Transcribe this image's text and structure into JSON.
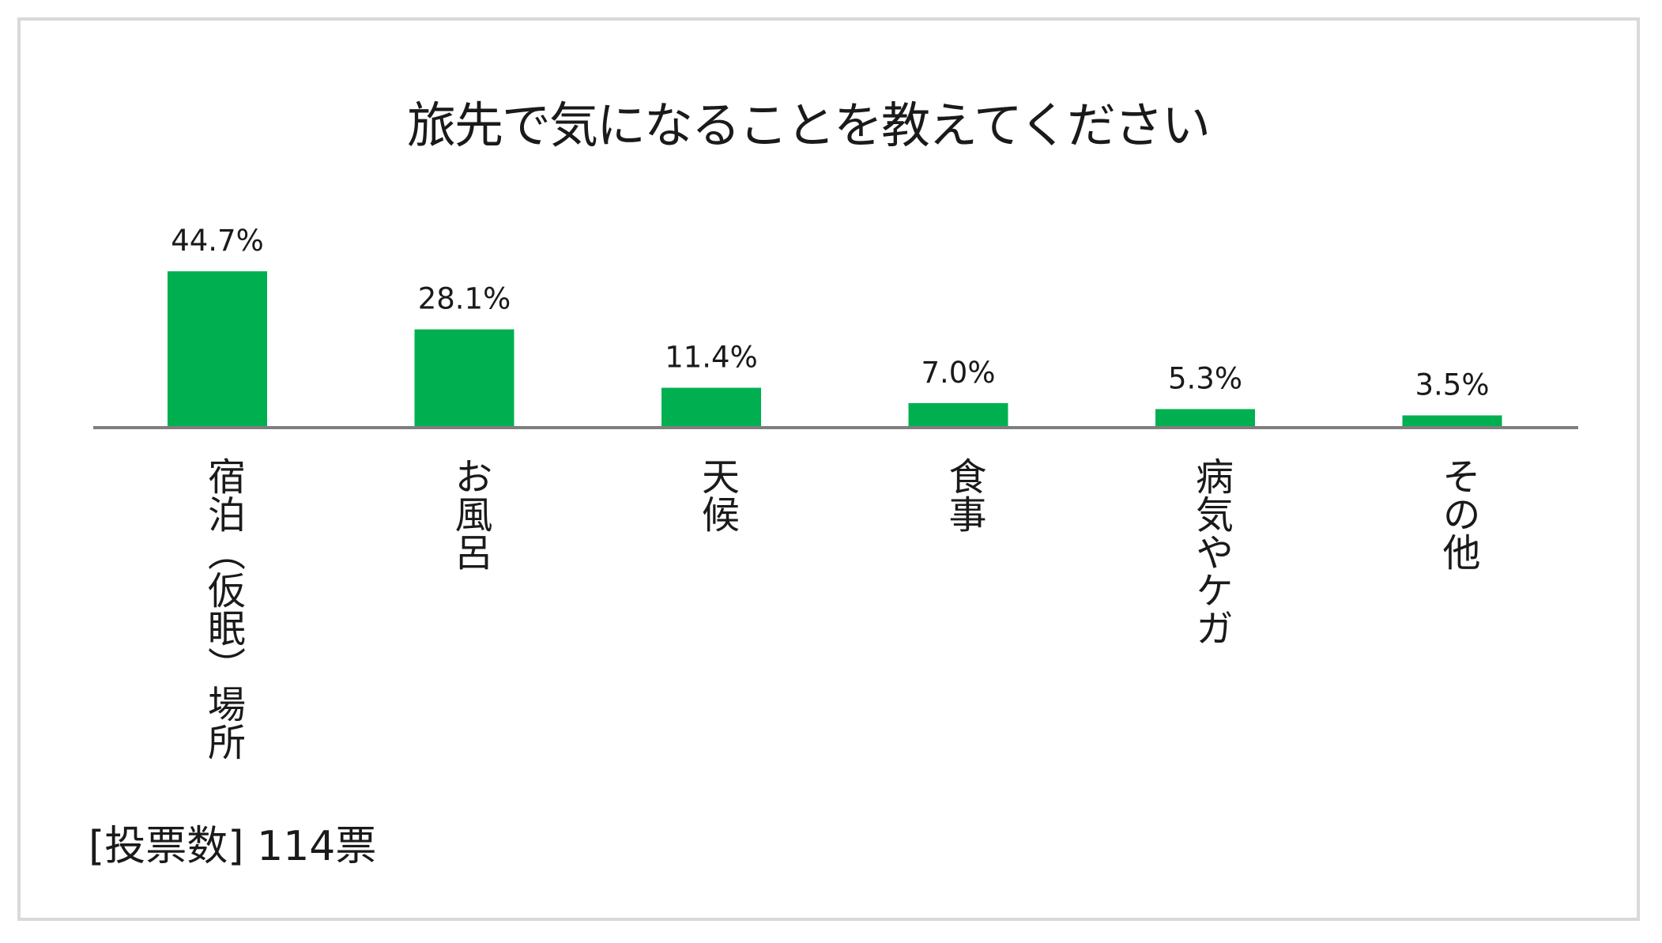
{
  "chart_data": {
    "type": "bar",
    "title": "旅先で気になることを教えてください",
    "categories": [
      "宿泊（仮眠）場所",
      "お風呂",
      "天候",
      "食事",
      "病気やケガ",
      "その他"
    ],
    "values": [
      44.7,
      28.1,
      11.4,
      7.0,
      5.3,
      3.5
    ],
    "value_labels": [
      "44.7%",
      "28.1%",
      "11.4%",
      "7.0%",
      "5.3%",
      "3.5%"
    ],
    "ylim": [
      0,
      50
    ],
    "grid": false,
    "legend": "none",
    "bar_color": "#00b050",
    "axis_color": "#7f7f7f"
  },
  "footer": {
    "votes": "[投票数] 114票"
  }
}
